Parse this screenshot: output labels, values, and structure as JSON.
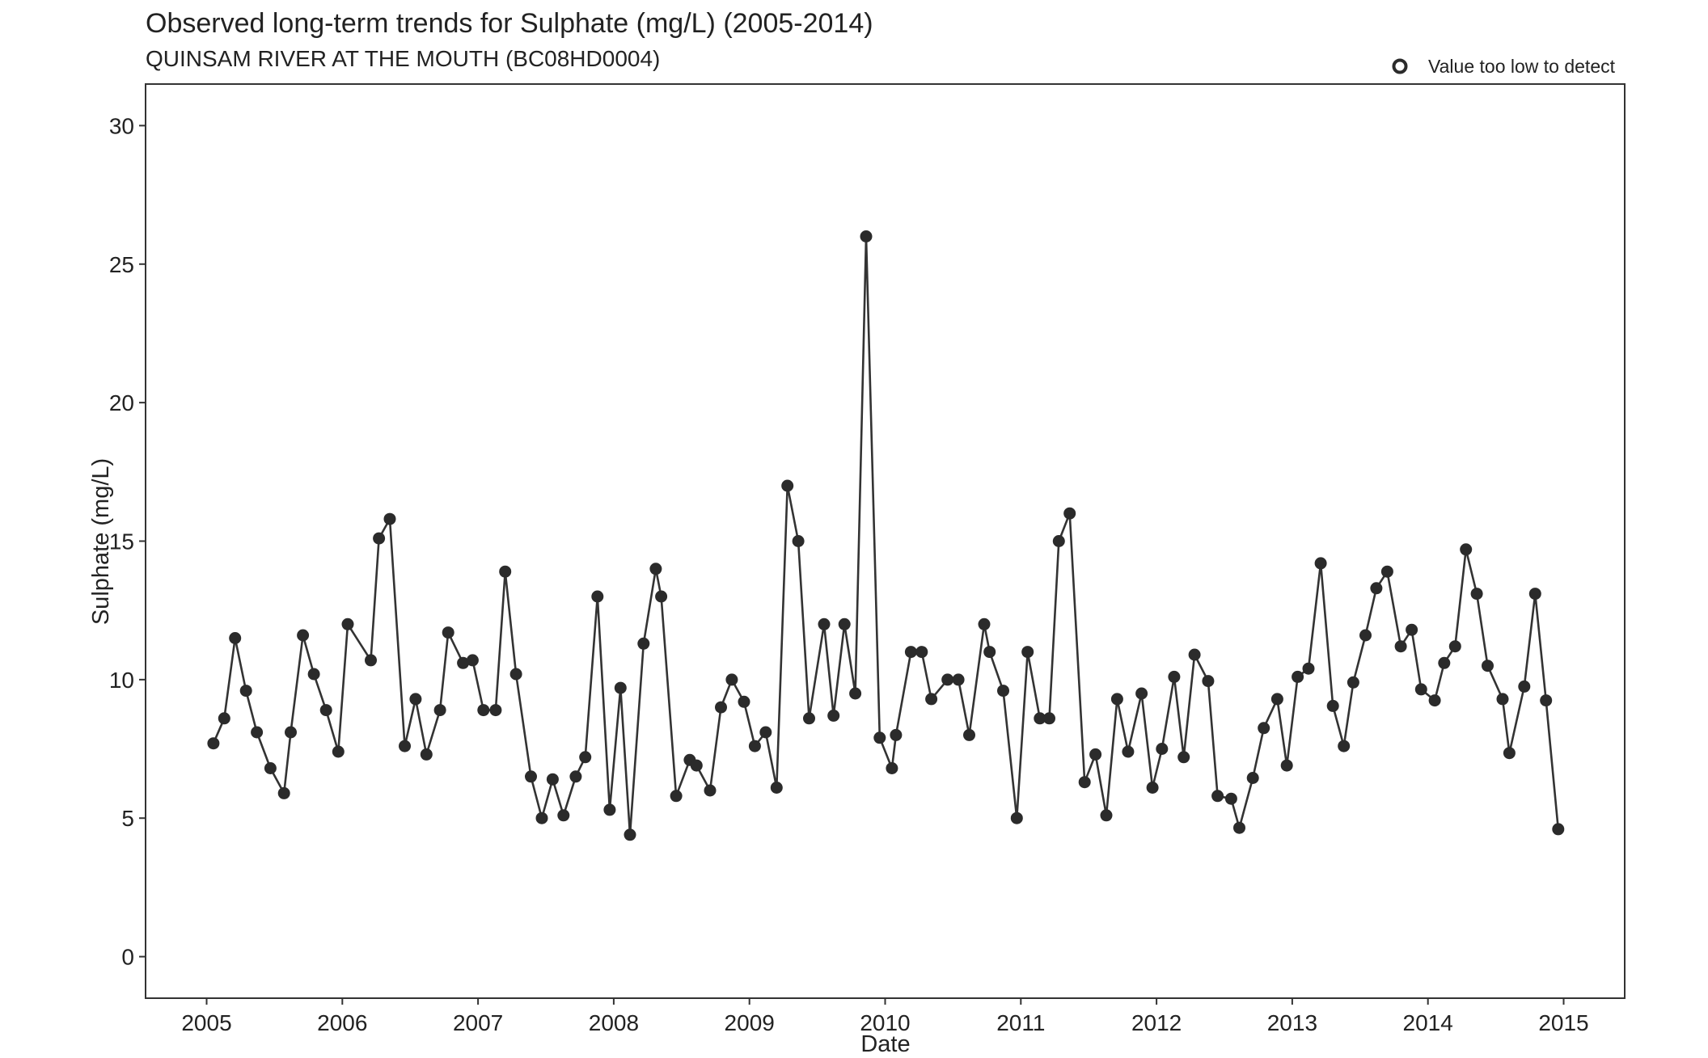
{
  "chart_data": {
    "type": "line",
    "title": "Observed long-term trends for Sulphate (mg/L) (2005-2014)",
    "subtitle": "QUINSAM RIVER AT THE MOUTH (BC08HD0004)",
    "xlabel": "Date",
    "ylabel": "Sulphate (mg/L)",
    "xlim": [
      2004.55,
      2015.45
    ],
    "ylim": [
      -1.5,
      31.5
    ],
    "x_ticks": [
      2005,
      2006,
      2007,
      2008,
      2009,
      2010,
      2011,
      2012,
      2013,
      2014,
      2015
    ],
    "x_tick_labels": [
      "2005",
      "2006",
      "2007",
      "2008",
      "2009",
      "2010",
      "2011",
      "2012",
      "2013",
      "2014",
      "2015"
    ],
    "y_ticks": [
      0,
      5,
      10,
      15,
      20,
      25,
      30
    ],
    "y_tick_labels": [
      "0",
      "5",
      "10",
      "15",
      "20",
      "25",
      "30"
    ],
    "grid": false,
    "legend": {
      "position": "top-right",
      "entries": [
        {
          "marker": "open-circle",
          "label": "Value too low to detect"
        }
      ]
    },
    "colors": {
      "line": "#333333",
      "marker": "#2b2b2b"
    },
    "series": [
      {
        "points": [
          {
            "x": 2005.05,
            "y": 7.7
          },
          {
            "x": 2005.13,
            "y": 8.6
          },
          {
            "x": 2005.21,
            "y": 11.5
          },
          {
            "x": 2005.29,
            "y": 9.6
          },
          {
            "x": 2005.37,
            "y": 8.1
          },
          {
            "x": 2005.47,
            "y": 6.8
          },
          {
            "x": 2005.57,
            "y": 5.9
          },
          {
            "x": 2005.62,
            "y": 8.1
          },
          {
            "x": 2005.71,
            "y": 11.6
          },
          {
            "x": 2005.79,
            "y": 10.2
          },
          {
            "x": 2005.88,
            "y": 8.9
          },
          {
            "x": 2005.97,
            "y": 7.4
          },
          {
            "x": 2006.04,
            "y": 12.0
          },
          {
            "x": 2006.21,
            "y": 10.7
          },
          {
            "x": 2006.27,
            "y": 15.1
          },
          {
            "x": 2006.35,
            "y": 15.8
          },
          {
            "x": 2006.46,
            "y": 7.6
          },
          {
            "x": 2006.54,
            "y": 9.3
          },
          {
            "x": 2006.62,
            "y": 7.3
          },
          {
            "x": 2006.72,
            "y": 8.9
          },
          {
            "x": 2006.78,
            "y": 11.7
          },
          {
            "x": 2006.89,
            "y": 10.6
          },
          {
            "x": 2006.96,
            "y": 10.7
          },
          {
            "x": 2007.04,
            "y": 8.9
          },
          {
            "x": 2007.13,
            "y": 8.9
          },
          {
            "x": 2007.2,
            "y": 13.9
          },
          {
            "x": 2007.28,
            "y": 10.2
          },
          {
            "x": 2007.39,
            "y": 6.5
          },
          {
            "x": 2007.47,
            "y": 5.0
          },
          {
            "x": 2007.55,
            "y": 6.4
          },
          {
            "x": 2007.63,
            "y": 5.1
          },
          {
            "x": 2007.72,
            "y": 6.5
          },
          {
            "x": 2007.79,
            "y": 7.2
          },
          {
            "x": 2007.88,
            "y": 13.0
          },
          {
            "x": 2007.97,
            "y": 5.3
          },
          {
            "x": 2008.05,
            "y": 9.7
          },
          {
            "x": 2008.12,
            "y": 4.4
          },
          {
            "x": 2008.22,
            "y": 11.3
          },
          {
            "x": 2008.31,
            "y": 14.0
          },
          {
            "x": 2008.35,
            "y": 13.0
          },
          {
            "x": 2008.46,
            "y": 5.8
          },
          {
            "x": 2008.56,
            "y": 7.1
          },
          {
            "x": 2008.61,
            "y": 6.9
          },
          {
            "x": 2008.71,
            "y": 6.0
          },
          {
            "x": 2008.79,
            "y": 9.0
          },
          {
            "x": 2008.87,
            "y": 10.0
          },
          {
            "x": 2008.96,
            "y": 9.2
          },
          {
            "x": 2009.04,
            "y": 7.6
          },
          {
            "x": 2009.12,
            "y": 8.1
          },
          {
            "x": 2009.2,
            "y": 6.1
          },
          {
            "x": 2009.28,
            "y": 17.0
          },
          {
            "x": 2009.36,
            "y": 15.0
          },
          {
            "x": 2009.44,
            "y": 8.6
          },
          {
            "x": 2009.55,
            "y": 12.0
          },
          {
            "x": 2009.62,
            "y": 8.7
          },
          {
            "x": 2009.7,
            "y": 12.0
          },
          {
            "x": 2009.78,
            "y": 9.5
          },
          {
            "x": 2009.86,
            "y": 26.0
          },
          {
            "x": 2009.96,
            "y": 7.9
          },
          {
            "x": 2010.05,
            "y": 6.8
          },
          {
            "x": 2010.08,
            "y": 8.0
          },
          {
            "x": 2010.19,
            "y": 11.0
          },
          {
            "x": 2010.27,
            "y": 11.0
          },
          {
            "x": 2010.34,
            "y": 9.3
          },
          {
            "x": 2010.46,
            "y": 10.0
          },
          {
            "x": 2010.54,
            "y": 10.0
          },
          {
            "x": 2010.62,
            "y": 8.0
          },
          {
            "x": 2010.73,
            "y": 12.0
          },
          {
            "x": 2010.77,
            "y": 11.0
          },
          {
            "x": 2010.87,
            "y": 9.6
          },
          {
            "x": 2010.97,
            "y": 5.0
          },
          {
            "x": 2011.05,
            "y": 11.0
          },
          {
            "x": 2011.14,
            "y": 8.6
          },
          {
            "x": 2011.21,
            "y": 8.6
          },
          {
            "x": 2011.28,
            "y": 15.0
          },
          {
            "x": 2011.36,
            "y": 16.0
          },
          {
            "x": 2011.47,
            "y": 6.3
          },
          {
            "x": 2011.55,
            "y": 7.3
          },
          {
            "x": 2011.63,
            "y": 5.1
          },
          {
            "x": 2011.71,
            "y": 9.3
          },
          {
            "x": 2011.79,
            "y": 7.4
          },
          {
            "x": 2011.89,
            "y": 9.5
          },
          {
            "x": 2011.97,
            "y": 6.1
          },
          {
            "x": 2012.04,
            "y": 7.5
          },
          {
            "x": 2012.13,
            "y": 10.1
          },
          {
            "x": 2012.2,
            "y": 7.2
          },
          {
            "x": 2012.28,
            "y": 10.9
          },
          {
            "x": 2012.38,
            "y": 9.95
          },
          {
            "x": 2012.45,
            "y": 5.8
          },
          {
            "x": 2012.55,
            "y": 5.7
          },
          {
            "x": 2012.61,
            "y": 4.65
          },
          {
            "x": 2012.71,
            "y": 6.45
          },
          {
            "x": 2012.79,
            "y": 8.25
          },
          {
            "x": 2012.89,
            "y": 9.3
          },
          {
            "x": 2012.96,
            "y": 6.9
          },
          {
            "x": 2013.04,
            "y": 10.1
          },
          {
            "x": 2013.12,
            "y": 10.4
          },
          {
            "x": 2013.21,
            "y": 14.2
          },
          {
            "x": 2013.3,
            "y": 9.05
          },
          {
            "x": 2013.38,
            "y": 7.6
          },
          {
            "x": 2013.45,
            "y": 9.9
          },
          {
            "x": 2013.54,
            "y": 11.6
          },
          {
            "x": 2013.62,
            "y": 13.3
          },
          {
            "x": 2013.7,
            "y": 13.9
          },
          {
            "x": 2013.8,
            "y": 11.2
          },
          {
            "x": 2013.88,
            "y": 11.8
          },
          {
            "x": 2013.95,
            "y": 9.65
          },
          {
            "x": 2014.05,
            "y": 9.25
          },
          {
            "x": 2014.12,
            "y": 10.6
          },
          {
            "x": 2014.2,
            "y": 11.2
          },
          {
            "x": 2014.28,
            "y": 14.7
          },
          {
            "x": 2014.36,
            "y": 13.1
          },
          {
            "x": 2014.44,
            "y": 10.5
          },
          {
            "x": 2014.55,
            "y": 9.3
          },
          {
            "x": 2014.6,
            "y": 7.35
          },
          {
            "x": 2014.71,
            "y": 9.75
          },
          {
            "x": 2014.79,
            "y": 13.1
          },
          {
            "x": 2014.87,
            "y": 9.25
          },
          {
            "x": 2014.96,
            "y": 4.6
          }
        ]
      }
    ]
  }
}
